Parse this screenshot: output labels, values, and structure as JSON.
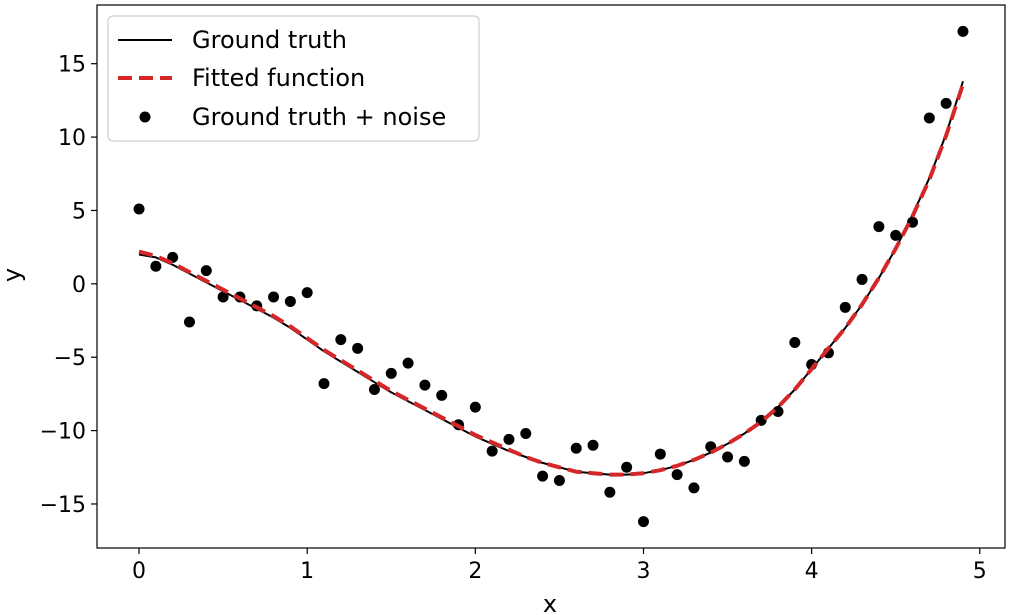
{
  "chart_data": {
    "type": "scatter",
    "title": "",
    "xlabel": "x",
    "ylabel": "y",
    "xlim": [
      -0.25,
      5.15
    ],
    "ylim": [
      -18,
      19
    ],
    "xticks": [
      0,
      1,
      2,
      3,
      4,
      5
    ],
    "yticks": [
      -15,
      -10,
      -5,
      0,
      5,
      10,
      15
    ],
    "xtick_labels": [
      "0",
      "1",
      "2",
      "3",
      "4",
      "5"
    ],
    "ytick_labels": [
      "−15",
      "−10",
      "−5",
      "0",
      "5",
      "10",
      "15"
    ],
    "grid": false,
    "legend_position": "top-left",
    "legend": [
      {
        "label": "Ground truth",
        "style": "line",
        "color": "#000000"
      },
      {
        "label": "Fitted function",
        "style": "dashed",
        "color": "#d62728"
      },
      {
        "label": "Ground truth + noise",
        "style": "marker",
        "color": "#000000"
      }
    ],
    "series": [
      {
        "name": "Ground truth",
        "type": "line",
        "color": "#000000",
        "x": [
          0,
          0.1,
          0.2,
          0.3,
          0.4,
          0.5,
          0.6,
          0.7,
          0.8,
          0.9,
          1.0,
          1.1,
          1.2,
          1.3,
          1.4,
          1.5,
          1.6,
          1.7,
          1.8,
          1.9,
          2.0,
          2.1,
          2.2,
          2.3,
          2.4,
          2.5,
          2.6,
          2.7,
          2.8,
          2.9,
          3.0,
          3.1,
          3.2,
          3.3,
          3.4,
          3.5,
          3.6,
          3.7,
          3.8,
          3.9,
          4.0,
          4.1,
          4.2,
          4.3,
          4.4,
          4.5,
          4.6,
          4.7,
          4.8,
          4.9
        ],
        "y": [
          2.0,
          1.8,
          1.3,
          0.7,
          0.1,
          -0.5,
          -1.1,
          -1.7,
          -2.3,
          -3.0,
          -3.8,
          -4.6,
          -5.3,
          -6.0,
          -6.7,
          -7.4,
          -8.0,
          -8.6,
          -9.2,
          -9.8,
          -10.4,
          -10.9,
          -11.4,
          -11.8,
          -12.2,
          -12.5,
          -12.8,
          -12.9,
          -13.0,
          -13.0,
          -12.9,
          -12.7,
          -12.4,
          -12.0,
          -11.5,
          -10.9,
          -10.2,
          -9.4,
          -8.4,
          -7.2,
          -5.8,
          -4.4,
          -3.0,
          -1.4,
          0.4,
          2.4,
          4.7,
          7.2,
          10.2,
          13.8
        ]
      },
      {
        "name": "Fitted function",
        "type": "line",
        "color": "#d62728",
        "x": [
          0,
          0.1,
          0.2,
          0.3,
          0.4,
          0.5,
          0.6,
          0.7,
          0.8,
          0.9,
          1.0,
          1.1,
          1.2,
          1.3,
          1.4,
          1.5,
          1.6,
          1.7,
          1.8,
          1.9,
          2.0,
          2.1,
          2.2,
          2.3,
          2.4,
          2.5,
          2.6,
          2.7,
          2.8,
          2.9,
          3.0,
          3.1,
          3.2,
          3.3,
          3.4,
          3.5,
          3.6,
          3.7,
          3.8,
          3.9,
          4.0,
          4.1,
          4.2,
          4.3,
          4.4,
          4.5,
          4.6,
          4.7,
          4.8,
          4.9
        ],
        "y": [
          2.2,
          1.9,
          1.4,
          0.8,
          0.2,
          -0.4,
          -1.0,
          -1.6,
          -2.2,
          -2.9,
          -3.7,
          -4.5,
          -5.2,
          -5.9,
          -6.6,
          -7.3,
          -7.9,
          -8.5,
          -9.1,
          -9.7,
          -10.3,
          -10.8,
          -11.3,
          -11.8,
          -12.2,
          -12.5,
          -12.8,
          -12.9,
          -13.0,
          -13.0,
          -12.9,
          -12.7,
          -12.4,
          -12.0,
          -11.5,
          -10.9,
          -10.2,
          -9.4,
          -8.4,
          -7.2,
          -5.8,
          -4.4,
          -3.0,
          -1.4,
          0.4,
          2.4,
          4.6,
          7.1,
          10.1,
          13.6
        ]
      },
      {
        "name": "Ground truth + noise",
        "type": "scatter",
        "color": "#000000",
        "x": [
          0,
          0.1,
          0.2,
          0.3,
          0.4,
          0.5,
          0.6,
          0.7,
          0.8,
          0.9,
          1.0,
          1.1,
          1.2,
          1.3,
          1.4,
          1.5,
          1.6,
          1.7,
          1.8,
          1.9,
          2.0,
          2.1,
          2.2,
          2.3,
          2.4,
          2.5,
          2.6,
          2.7,
          2.8,
          2.9,
          3.0,
          3.1,
          3.2,
          3.3,
          3.4,
          3.5,
          3.6,
          3.7,
          3.8,
          3.9,
          4.0,
          4.1,
          4.2,
          4.3,
          4.4,
          4.5,
          4.6,
          4.7,
          4.8,
          4.9
        ],
        "y": [
          5.1,
          1.2,
          1.8,
          -2.6,
          0.9,
          -0.9,
          -0.9,
          -1.5,
          -0.9,
          -1.2,
          -0.6,
          -6.8,
          -3.8,
          -4.4,
          -7.2,
          -6.1,
          -5.4,
          -6.9,
          -7.6,
          -9.6,
          -8.4,
          -11.4,
          -10.6,
          -10.2,
          -13.1,
          -13.4,
          -11.2,
          -11.0,
          -14.2,
          -12.5,
          -16.2,
          -11.6,
          -13.0,
          -13.9,
          -11.1,
          -11.8,
          -12.1,
          -9.3,
          -8.7,
          -4.0,
          -5.5,
          -4.7,
          -1.6,
          0.3,
          3.9,
          3.3,
          4.2,
          11.3,
          12.3,
          17.2
        ]
      }
    ]
  }
}
